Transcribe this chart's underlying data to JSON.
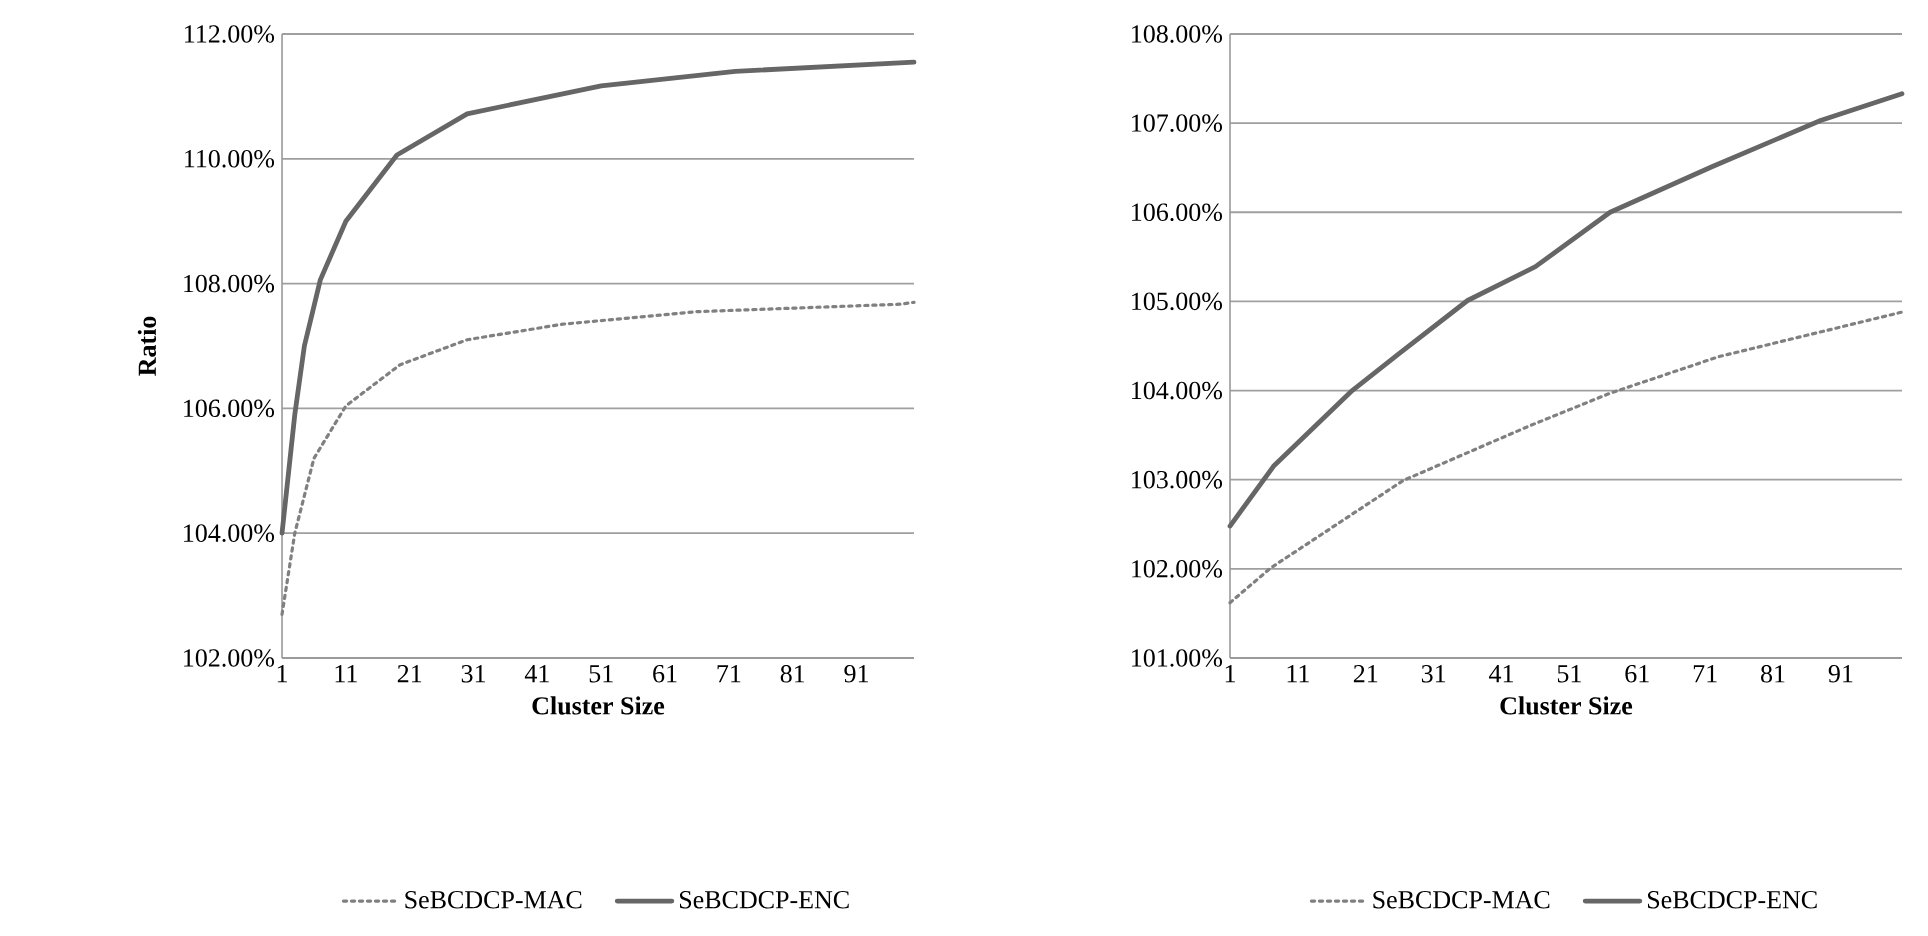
{
  "chart_data": [
    {
      "type": "line",
      "xlabel": "Cluster Size",
      "ylabel": "Ratio",
      "xlim": [
        1,
        100
      ],
      "xticks": [
        1,
        11,
        21,
        31,
        41,
        51,
        61,
        71,
        81,
        91
      ],
      "ylim": [
        102,
        112
      ],
      "yticks": [
        {
          "value": 102,
          "label": "102.00%"
        },
        {
          "value": 104,
          "label": "104.00%"
        },
        {
          "value": 106,
          "label": "106.00%"
        },
        {
          "value": 108,
          "label": "108.00%"
        },
        {
          "value": 110,
          "label": "110.00%"
        },
        {
          "value": 112,
          "label": "112.00%"
        }
      ],
      "grid": "y",
      "legend": "bottom",
      "series": [
        {
          "name": "SeBCDCP-MAC",
          "color": "#808080",
          "line_style": "dotted",
          "x": [
            1,
            3,
            6,
            11,
            19.5,
            30,
            45,
            66,
            98,
            100
          ],
          "values": [
            102.7,
            104.0,
            105.2,
            106.04,
            106.7,
            107.1,
            107.35,
            107.55,
            107.67,
            107.7
          ]
        },
        {
          "name": "SeBCDCP-ENC",
          "color": "#666666",
          "line_style": "solid",
          "x": [
            1,
            3,
            4.5,
            7,
            11,
            19,
            30,
            51,
            72,
            100
          ],
          "values": [
            104.0,
            105.9,
            107.0,
            108.06,
            109.0,
            110.06,
            110.72,
            111.17,
            111.4,
            111.55
          ]
        }
      ]
    },
    {
      "type": "line",
      "xlabel": "Cluster Size",
      "xlim": [
        1,
        100
      ],
      "xticks": [
        1,
        11,
        21,
        31,
        41,
        51,
        61,
        71,
        81,
        91
      ],
      "ylim": [
        101,
        108
      ],
      "yticks": [
        {
          "value": 101,
          "label": "101.00%"
        },
        {
          "value": 102,
          "label": "102.00%"
        },
        {
          "value": 103,
          "label": "103.00%"
        },
        {
          "value": 104,
          "label": "104.00%"
        },
        {
          "value": 105,
          "label": "105.00%"
        },
        {
          "value": 106,
          "label": "106.00%"
        },
        {
          "value": 107,
          "label": "107.00%"
        },
        {
          "value": 108,
          "label": "108.00%"
        }
      ],
      "grid": "y",
      "legend": "bottom",
      "series": [
        {
          "name": "SeBCDCP-MAC",
          "color": "#808080",
          "line_style": "dotted",
          "x": [
            1,
            7,
            26.5,
            45,
            57,
            73,
            100
          ],
          "values": [
            101.62,
            102.01,
            102.99,
            103.6,
            103.97,
            104.38,
            104.88
          ]
        },
        {
          "name": "SeBCDCP-ENC",
          "color": "#666666",
          "line_style": "solid",
          "x": [
            1,
            7.4,
            19,
            26,
            36,
            46,
            57,
            72,
            88,
            100
          ],
          "values": [
            102.48,
            103.15,
            104.0,
            104.42,
            105.01,
            105.39,
            106.0,
            106.51,
            107.03,
            107.33
          ]
        }
      ]
    }
  ]
}
